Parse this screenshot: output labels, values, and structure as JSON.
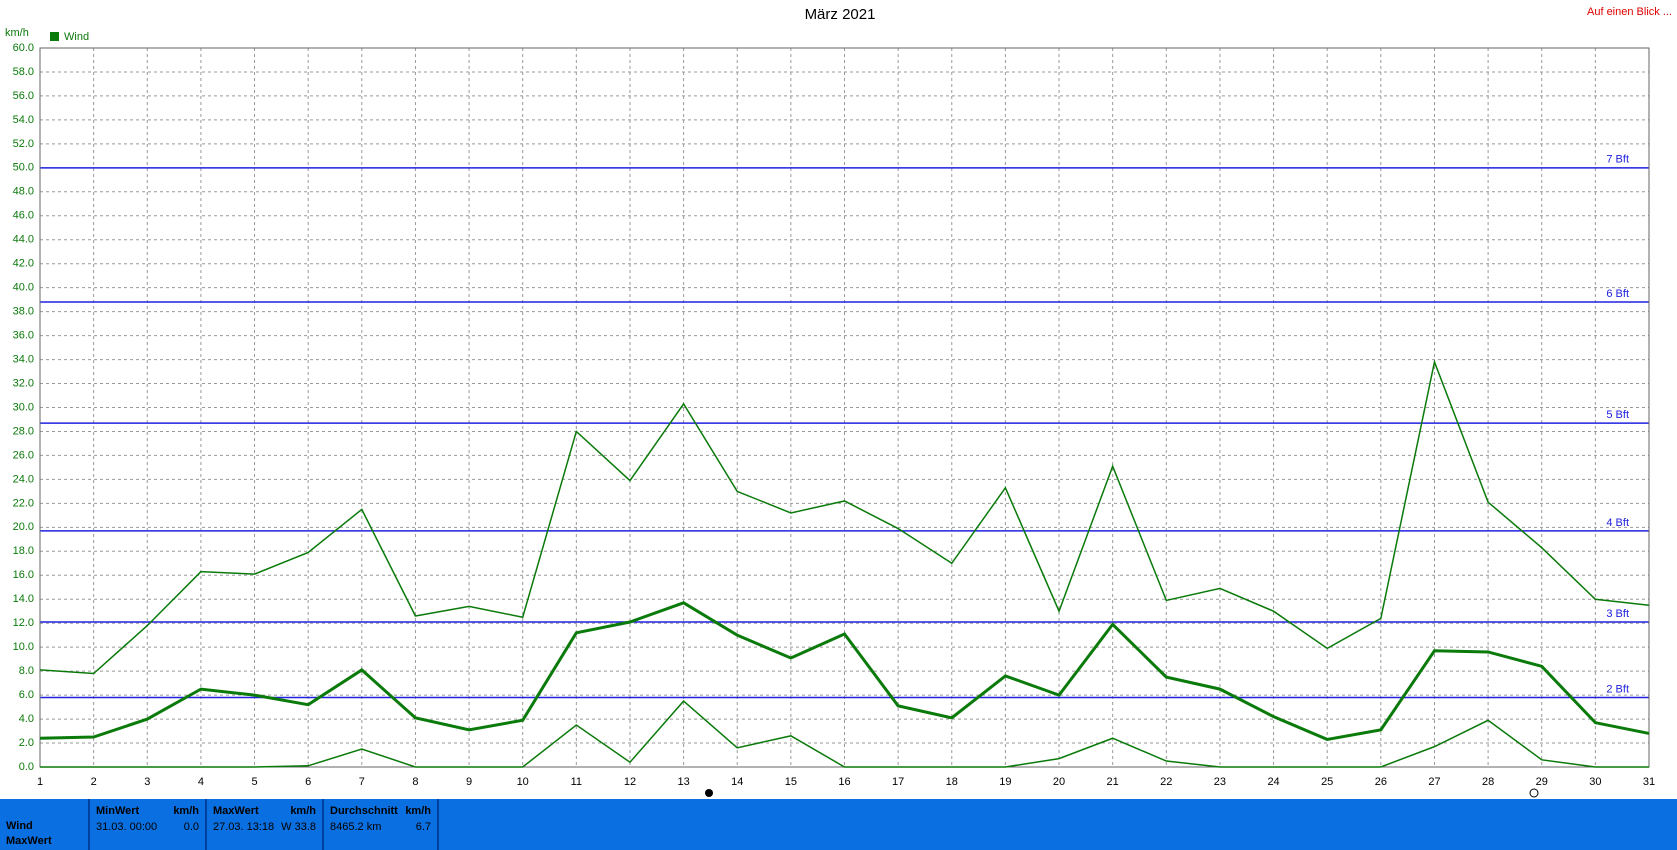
{
  "chart_data": {
    "type": "line",
    "title": "März 2021",
    "corner_link": "Auf einen Blick ...",
    "y_unit": "km/h",
    "x": [
      1,
      2,
      3,
      4,
      5,
      6,
      7,
      8,
      9,
      10,
      11,
      12,
      13,
      14,
      15,
      16,
      17,
      18,
      19,
      20,
      21,
      22,
      23,
      24,
      25,
      26,
      27,
      28,
      29,
      30,
      31
    ],
    "series": [
      {
        "color": "#0a7a0a",
        "width": 1.5,
        "values": [
          8.1,
          7.8,
          11.8,
          16.3,
          16.1,
          17.9,
          21.5,
          12.6,
          13.4,
          12.5,
          28.0,
          23.9,
          30.3,
          23.0,
          21.2,
          22.2,
          19.9,
          17.0,
          23.3,
          13.0,
          25.1,
          13.9,
          14.9,
          13.0,
          9.9,
          12.4,
          33.8,
          22.1,
          18.3,
          14.0,
          13.5
        ]
      },
      {
        "name": "Wind",
        "color": "#0a7a0a",
        "width": 3,
        "values": [
          2.4,
          2.5,
          4.0,
          6.5,
          6.0,
          5.2,
          8.1,
          4.1,
          3.1,
          3.9,
          11.2,
          12.1,
          13.7,
          11.0,
          9.1,
          11.1,
          5.1,
          4.1,
          7.6,
          6.0,
          11.9,
          7.5,
          6.5,
          4.2,
          2.3,
          3.1,
          9.7,
          9.6,
          8.4,
          3.7,
          2.8
        ]
      },
      {
        "color": "#0a7a0a",
        "width": 1.5,
        "values": [
          0,
          0,
          0,
          0,
          0,
          0.1,
          1.5,
          0,
          0,
          0,
          3.5,
          0.4,
          5.5,
          1.6,
          2.6,
          0,
          0,
          0,
          0,
          0.7,
          2.4,
          0.5,
          0,
          0,
          0,
          0,
          1.7,
          3.9,
          0.6,
          0,
          0
        ]
      }
    ],
    "reference_lines": [
      {
        "value": 50,
        "label": "7 Bft"
      },
      {
        "value": 38.8,
        "label": "6 Bft"
      },
      {
        "value": 28.7,
        "label": "5 Bft"
      },
      {
        "value": 19.7,
        "label": "4 Bft"
      },
      {
        "value": 12.1,
        "label": "3 Bft"
      },
      {
        "value": 5.8,
        "label": "2 Bft"
      }
    ],
    "reference_color": "#2020e0",
    "xlim": [
      1,
      31
    ],
    "xticks": [
      1,
      2,
      3,
      4,
      5,
      6,
      7,
      8,
      9,
      10,
      11,
      12,
      13,
      14,
      15,
      16,
      17,
      18,
      19,
      20,
      21,
      22,
      23,
      24,
      25,
      26,
      27,
      28,
      29,
      30,
      31
    ],
    "ylim": [
      0,
      60
    ],
    "yticks": [
      {
        "value": 0,
        "label": "0.0"
      },
      {
        "value": 2,
        "label": "2.0"
      },
      {
        "value": 4,
        "label": "4.0"
      },
      {
        "value": 6,
        "label": "6.0"
      },
      {
        "value": 8,
        "label": "8.0"
      },
      {
        "value": 10,
        "label": "10.0"
      },
      {
        "value": 12,
        "label": "12.0"
      },
      {
        "value": 14,
        "label": "14.0"
      },
      {
        "value": 16,
        "label": "16.0"
      },
      {
        "value": 18,
        "label": "18.0"
      },
      {
        "value": 20,
        "label": "20.0"
      },
      {
        "value": 22,
        "label": "22.0"
      },
      {
        "value": 24,
        "label": "24.0"
      },
      {
        "value": 26,
        "label": "26.0"
      },
      {
        "value": 28,
        "label": "28.0"
      },
      {
        "value": 30,
        "label": "30.0"
      },
      {
        "value": 32,
        "label": "32.0"
      },
      {
        "value": 34,
        "label": "34.0"
      },
      {
        "value": 36,
        "label": "36.0"
      },
      {
        "value": 38,
        "label": "38.0"
      },
      {
        "value": 40,
        "label": "40.0"
      },
      {
        "value": 42,
        "label": "42.0"
      },
      {
        "value": 44,
        "label": "44.0"
      },
      {
        "value": 46,
        "label": "46.0"
      },
      {
        "value": 48,
        "label": "48.0"
      },
      {
        "value": 50,
        "label": "50.0"
      },
      {
        "value": 52,
        "label": "52.0"
      },
      {
        "value": 54,
        "label": "54.0"
      },
      {
        "value": 56,
        "label": "56.0"
      },
      {
        "value": 58,
        "label": "58.0"
      },
      {
        "value": 60,
        "label": "60.0"
      }
    ],
    "grid": true
  },
  "summary": {
    "row_labels": [
      "Wind",
      "MaxWert"
    ],
    "columns": [
      {
        "head": "MinWert",
        "unit": "km/h",
        "time": "31.03.  00:00",
        "value": "0.0"
      },
      {
        "head": "MaxWert",
        "unit": "km/h",
        "time": "27.03.  13:18",
        "value": "W 33.8"
      },
      {
        "head": "Durchschnitt",
        "unit": "km/h",
        "time": "8465.2 km",
        "value": "6.7"
      }
    ]
  }
}
